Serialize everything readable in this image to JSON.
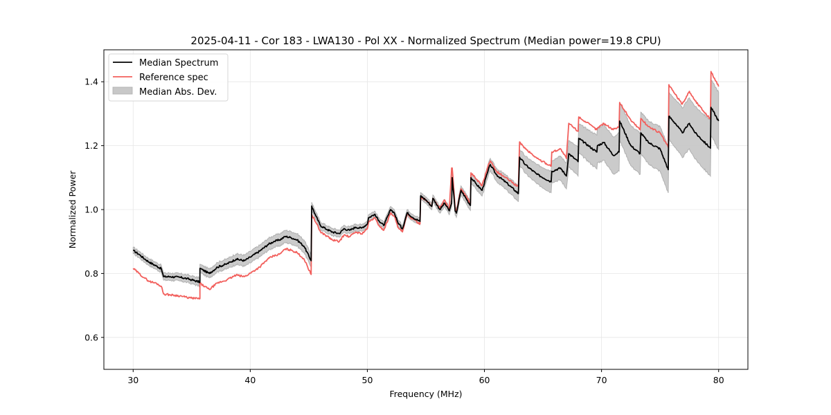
{
  "chart_data": {
    "type": "line",
    "title": "2025-04-11 - Cor 183 - LWA130 - Pol XX - Normalized Spectrum (Median power=19.8 CPU)",
    "xlabel": "Frequency (MHz)",
    "ylabel": "Normalized Power",
    "xlim": [
      27.5,
      82.5
    ],
    "ylim": [
      0.5,
      1.5
    ],
    "xticks": [
      30,
      40,
      50,
      60,
      70,
      80
    ],
    "xtick_labels": [
      "30",
      "40",
      "50",
      "60",
      "70",
      "80"
    ],
    "yticks": [
      0.6,
      0.8,
      1.0,
      1.2,
      1.4
    ],
    "ytick_labels": [
      "0.6",
      "0.8",
      "1.0",
      "1.2",
      "1.4"
    ],
    "grid": true,
    "legend_position": "top-left",
    "legend": [
      {
        "label": "Median Spectrum",
        "kind": "line",
        "color": "#000000"
      },
      {
        "label": "Reference spec",
        "kind": "line",
        "color": "#f25f5c"
      },
      {
        "label": "Median Abs. Dev.",
        "kind": "band",
        "color": "#c8c8c8"
      }
    ],
    "series": [
      {
        "name": "Median Spectrum",
        "color": "#000000",
        "x": [
          30.0,
          30.5,
          31.0,
          31.4,
          32.0,
          32.4,
          32.6,
          33.2,
          34.0,
          34.6,
          35.0,
          35.7,
          35.7,
          36.5,
          37.2,
          38.0,
          38.8,
          39.5,
          40.0,
          40.8,
          41.5,
          42.0,
          42.5,
          43.0,
          43.5,
          44.0,
          44.6,
          45.2,
          45.25,
          45.6,
          46.0,
          46.6,
          47.0,
          47.6,
          48.0,
          48.5,
          49.0,
          49.5,
          50.0,
          50.1,
          50.6,
          51.0,
          51.4,
          52.0,
          52.3,
          52.6,
          53.0,
          53.4,
          53.9,
          54.5,
          54.55,
          55.0,
          55.5,
          55.6,
          56.2,
          56.6,
          57.0,
          57.2,
          57.25,
          57.5,
          57.6,
          58.0,
          58.8,
          58.85,
          59.3,
          59.8,
          60.3,
          60.5,
          61.0,
          62.0,
          62.9,
          63.0,
          63.5,
          64.5,
          65.7,
          65.75,
          66.5,
          67.0,
          67.2,
          68.0,
          68.05,
          69.6,
          69.65,
          70.2,
          71.0,
          71.5,
          71.55,
          72.5,
          73.3,
          73.35,
          74.0,
          75.0,
          75.7,
          75.75,
          76.3,
          76.9,
          77.5,
          78.0,
          79.3,
          79.35,
          80.0
        ],
        "values": [
          0.872,
          0.86,
          0.845,
          0.835,
          0.823,
          0.815,
          0.79,
          0.79,
          0.788,
          0.784,
          0.78,
          0.773,
          0.816,
          0.8,
          0.82,
          0.83,
          0.845,
          0.84,
          0.851,
          0.87,
          0.89,
          0.9,
          0.905,
          0.916,
          0.912,
          0.905,
          0.885,
          0.84,
          1.011,
          0.98,
          0.95,
          0.937,
          0.93,
          0.925,
          0.94,
          0.935,
          0.945,
          0.942,
          0.955,
          0.974,
          0.985,
          0.965,
          0.95,
          1.0,
          0.99,
          0.96,
          0.94,
          0.99,
          0.975,
          0.963,
          1.043,
          1.03,
          1.01,
          1.035,
          1.0,
          1.02,
          0.996,
          1.02,
          1.1,
          0.995,
          0.989,
          1.06,
          1.013,
          1.1,
          1.08,
          1.06,
          1.12,
          1.141,
          1.11,
          1.08,
          1.05,
          1.164,
          1.14,
          1.11,
          1.087,
          1.12,
          1.13,
          1.105,
          1.175,
          1.15,
          1.223,
          1.18,
          1.2,
          1.21,
          1.17,
          1.18,
          1.277,
          1.2,
          1.175,
          1.24,
          1.21,
          1.19,
          1.125,
          1.292,
          1.27,
          1.24,
          1.27,
          1.24,
          1.192,
          1.32,
          1.277
        ]
      },
      {
        "name": "Reference spec",
        "color": "#f25f5c",
        "x": [
          30.0,
          30.5,
          31.0,
          31.4,
          32.0,
          32.4,
          32.6,
          33.2,
          34.0,
          34.6,
          35.0,
          35.7,
          35.7,
          36.5,
          37.2,
          38.0,
          38.8,
          39.5,
          40.0,
          40.8,
          41.5,
          42.0,
          42.5,
          43.0,
          43.5,
          44.0,
          44.6,
          45.2,
          45.25,
          45.6,
          46.0,
          46.6,
          47.0,
          47.6,
          48.0,
          48.5,
          49.0,
          49.5,
          50.0,
          50.1,
          50.6,
          51.0,
          51.4,
          52.0,
          52.3,
          52.6,
          53.0,
          53.4,
          53.9,
          54.5,
          54.55,
          55.0,
          55.5,
          55.6,
          56.2,
          56.6,
          57.0,
          57.2,
          57.25,
          57.5,
          57.6,
          58.0,
          58.8,
          58.85,
          59.3,
          59.8,
          60.3,
          60.5,
          61.0,
          62.0,
          62.9,
          63.0,
          63.5,
          64.5,
          65.7,
          65.75,
          66.5,
          67.0,
          67.2,
          68.0,
          68.05,
          69.6,
          69.65,
          70.2,
          71.0,
          71.5,
          71.55,
          72.5,
          73.3,
          73.35,
          74.0,
          75.0,
          75.7,
          75.75,
          76.3,
          76.9,
          77.5,
          78.0,
          79.3,
          79.35,
          80.0
        ],
        "values": [
          0.816,
          0.8,
          0.785,
          0.775,
          0.769,
          0.76,
          0.736,
          0.733,
          0.73,
          0.725,
          0.723,
          0.721,
          0.769,
          0.75,
          0.77,
          0.78,
          0.795,
          0.79,
          0.801,
          0.82,
          0.845,
          0.855,
          0.86,
          0.877,
          0.873,
          0.865,
          0.845,
          0.797,
          0.985,
          0.96,
          0.93,
          0.916,
          0.905,
          0.9,
          0.92,
          0.915,
          0.93,
          0.924,
          0.94,
          0.959,
          0.975,
          0.95,
          0.935,
          0.99,
          0.98,
          0.945,
          0.93,
          0.985,
          0.97,
          0.955,
          1.04,
          1.03,
          1.01,
          1.035,
          1.005,
          1.03,
          1.0,
          1.13,
          1.13,
          1.005,
          0.995,
          1.065,
          1.02,
          1.115,
          1.095,
          1.075,
          1.135,
          1.152,
          1.12,
          1.095,
          1.071,
          1.212,
          1.19,
          1.16,
          1.136,
          1.18,
          1.19,
          1.16,
          1.27,
          1.245,
          1.29,
          1.25,
          1.255,
          1.27,
          1.25,
          1.26,
          1.335,
          1.28,
          1.25,
          1.285,
          1.26,
          1.24,
          1.195,
          1.391,
          1.36,
          1.33,
          1.37,
          1.34,
          1.283,
          1.432,
          1.385
        ]
      },
      {
        "name": "Median Abs. Dev.",
        "color": "#c8c8c8",
        "kind": "band",
        "x": [
          30.0,
          35.0,
          40.0,
          45.2,
          45.25,
          50.0,
          55.0,
          57.0,
          60.0,
          63.0,
          66.0,
          70.0,
          75.0,
          80.0
        ],
        "halfwidth": [
          0.01,
          0.012,
          0.018,
          0.02,
          0.012,
          0.01,
          0.01,
          0.012,
          0.018,
          0.025,
          0.035,
          0.055,
          0.07,
          0.09
        ]
      }
    ]
  }
}
